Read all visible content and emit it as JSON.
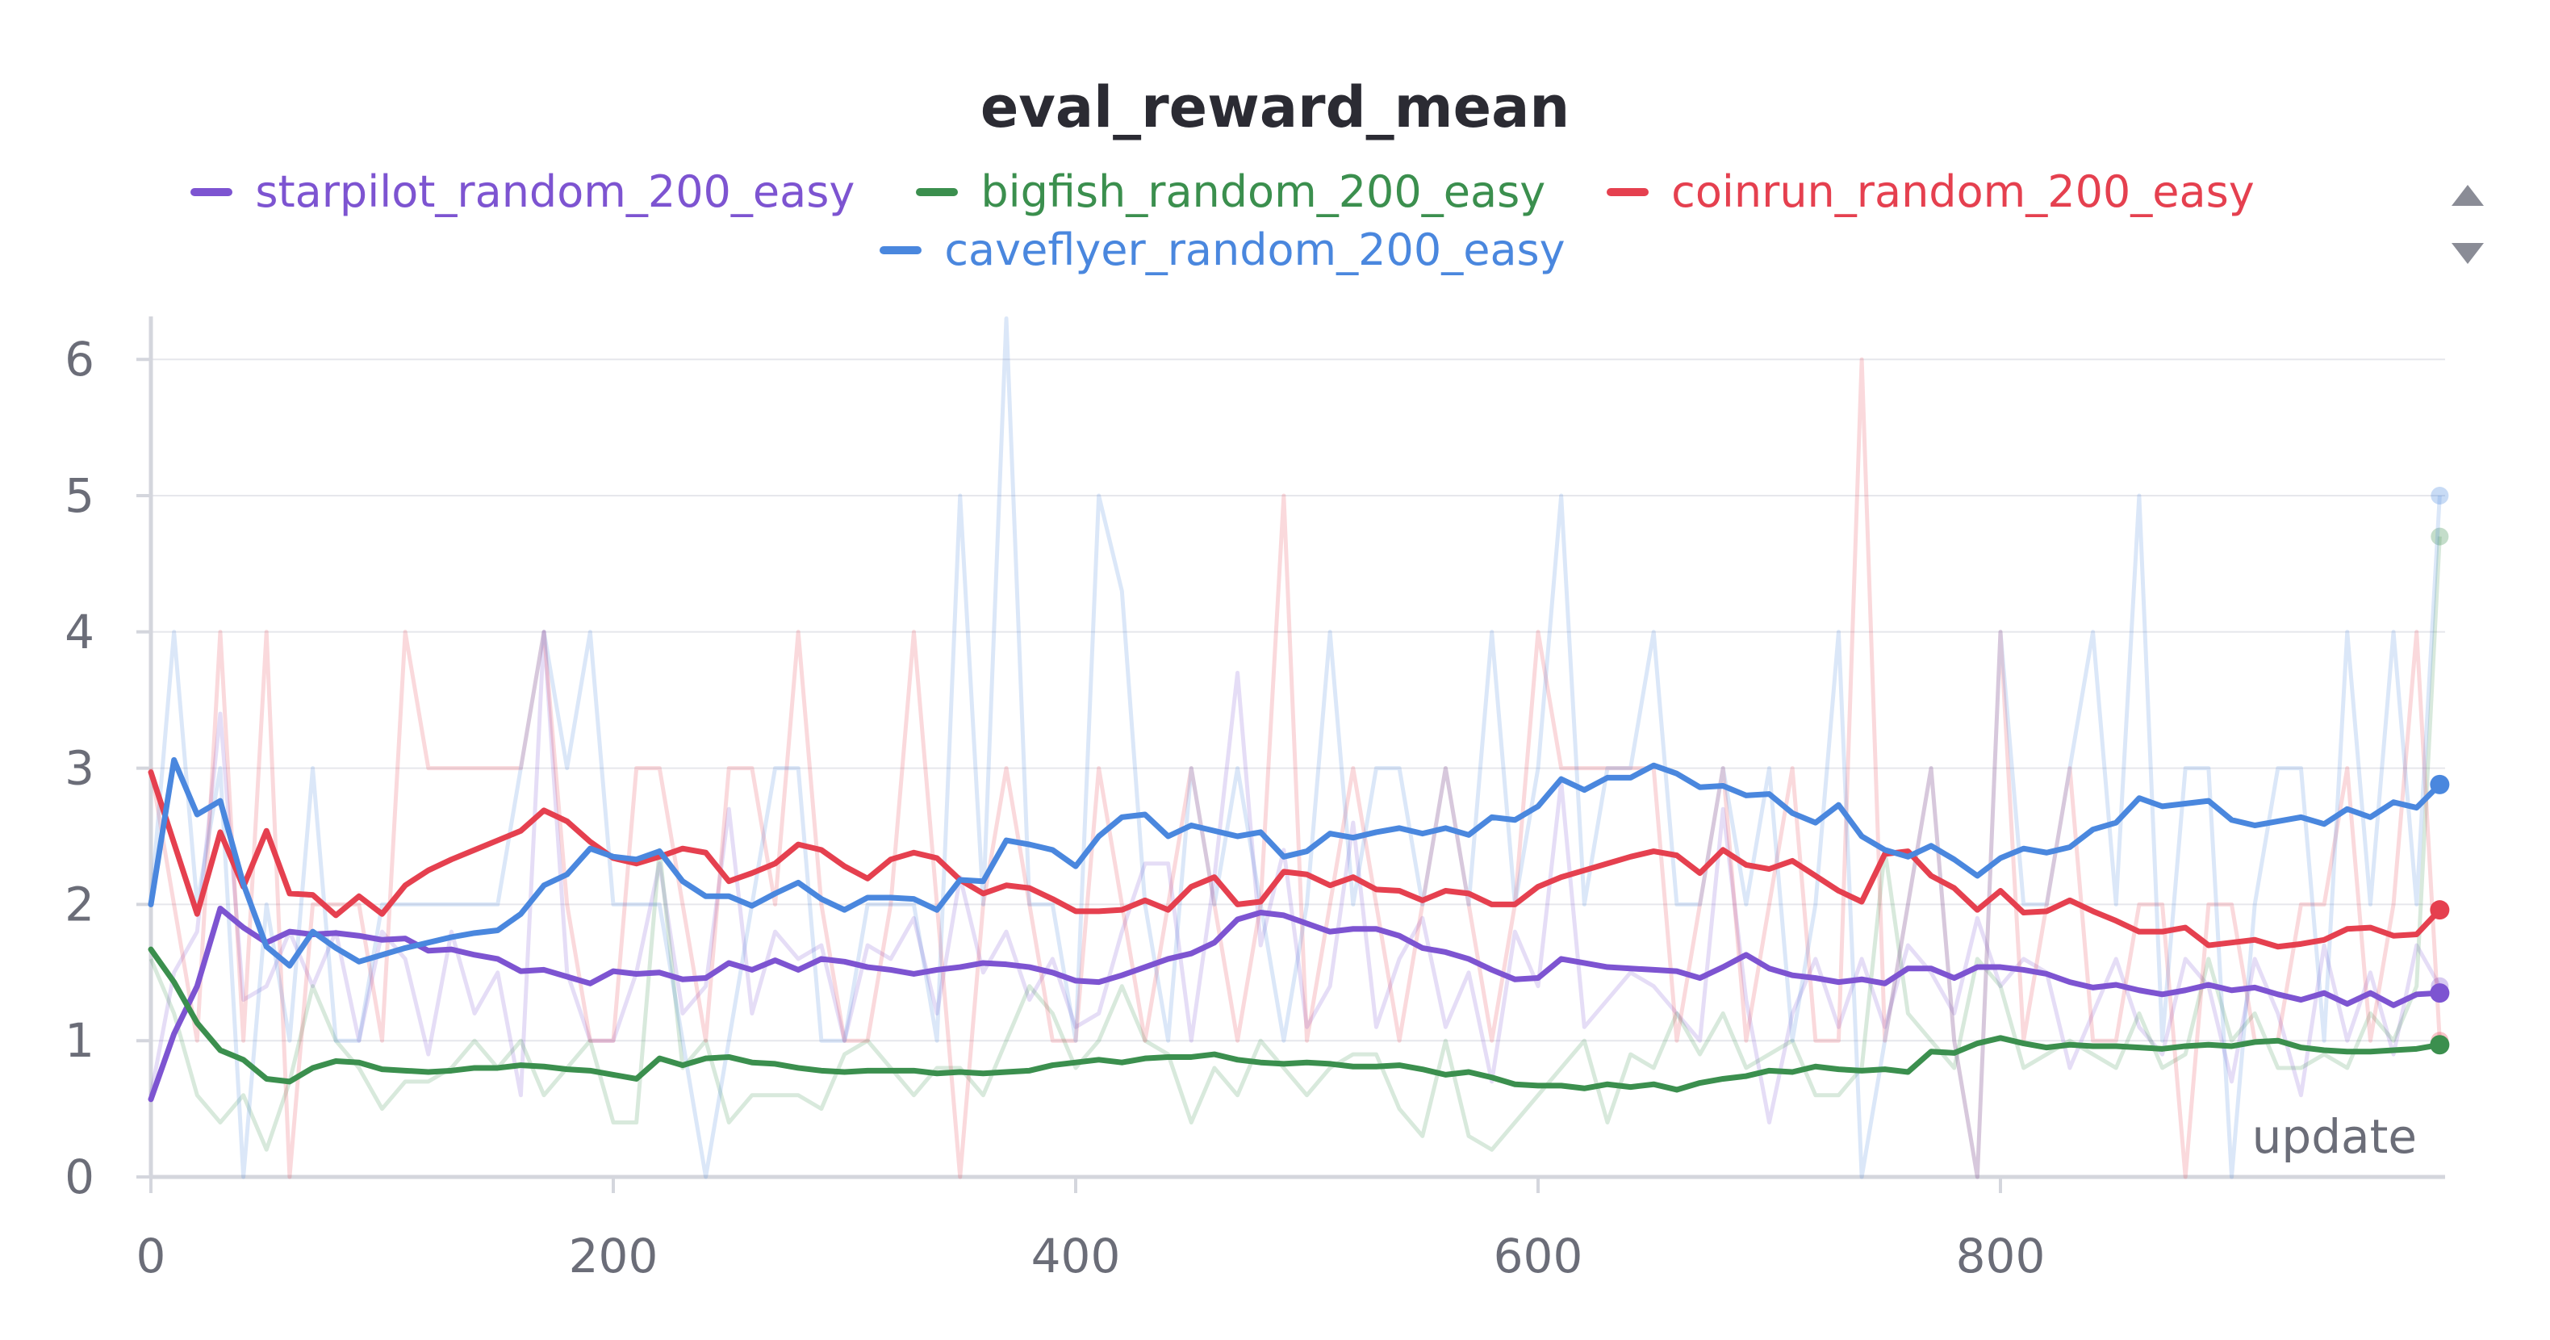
{
  "chart_data": {
    "type": "line",
    "title": "eval_reward_mean",
    "xlabel": "update",
    "ylabel": "",
    "xlim": [
      0,
      1000
    ],
    "ylim": [
      0,
      6.2
    ],
    "xticks": [
      "0",
      "200",
      "400",
      "600",
      "800"
    ],
    "yticks": [
      "0",
      "1",
      "2",
      "3",
      "4",
      "5",
      "6"
    ],
    "grid": true,
    "legend_position": "top",
    "x": [
      0,
      10,
      20,
      30,
      40,
      50,
      60,
      70,
      80,
      90,
      100,
      110,
      120,
      130,
      140,
      150,
      160,
      170,
      180,
      190,
      200,
      210,
      220,
      230,
      240,
      250,
      260,
      270,
      280,
      290,
      300,
      310,
      320,
      330,
      340,
      350,
      360,
      370,
      380,
      390,
      400,
      410,
      420,
      430,
      440,
      450,
      460,
      470,
      480,
      490,
      500,
      510,
      520,
      530,
      540,
      550,
      560,
      570,
      580,
      590,
      600,
      610,
      620,
      630,
      640,
      650,
      660,
      670,
      680,
      690,
      700,
      710,
      720,
      730,
      740,
      750,
      760,
      770,
      780,
      790,
      800,
      810,
      820,
      830,
      840,
      850,
      860,
      870,
      880,
      890,
      900,
      910,
      920,
      930,
      940,
      950,
      960,
      970,
      980,
      990
    ],
    "series": [
      {
        "name": "starpilot_random_200_easy",
        "color": "#7d54d1",
        "values": [
          0.57,
          1.05,
          1.4,
          1.97,
          1.83,
          1.72,
          1.8,
          1.78,
          1.79,
          1.77,
          1.74,
          1.75,
          1.66,
          1.67,
          1.63,
          1.6,
          1.51,
          1.52,
          1.47,
          1.42,
          1.51,
          1.49,
          1.5,
          1.45,
          1.46,
          1.57,
          1.52,
          1.59,
          1.52,
          1.6,
          1.58,
          1.54,
          1.52,
          1.49,
          1.52,
          1.54,
          1.57,
          1.56,
          1.54,
          1.5,
          1.44,
          1.43,
          1.48,
          1.54,
          1.6,
          1.64,
          1.72,
          1.89,
          1.94,
          1.92,
          1.86,
          1.8,
          1.82,
          1.82,
          1.77,
          1.68,
          1.65,
          1.6,
          1.52,
          1.45,
          1.46,
          1.6,
          1.57,
          1.54,
          1.53,
          1.52,
          1.51,
          1.46,
          1.54,
          1.63,
          1.53,
          1.48,
          1.46,
          1.43,
          1.45,
          1.42,
          1.53,
          1.53,
          1.46,
          1.54,
          1.54,
          1.52,
          1.49,
          1.43,
          1.39,
          1.41,
          1.37,
          1.34,
          1.37,
          1.41,
          1.37,
          1.39,
          1.34,
          1.3,
          1.35,
          1.27,
          1.35,
          1.26,
          1.34,
          1.35
        ],
        "raw": [
          0.6,
          1.5,
          1.8,
          3.4,
          1.3,
          1.4,
          1.8,
          1.4,
          1.8,
          1.0,
          1.8,
          1.6,
          0.9,
          1.8,
          1.2,
          1.5,
          0.6,
          4.0,
          1.5,
          1.0,
          1.0,
          1.5,
          2.3,
          1.2,
          1.4,
          2.7,
          1.2,
          1.8,
          1.6,
          1.7,
          1.0,
          1.7,
          1.6,
          1.9,
          1.2,
          2.2,
          1.5,
          1.8,
          1.3,
          1.6,
          1.1,
          1.2,
          1.8,
          2.3,
          2.3,
          1.0,
          2.2,
          3.7,
          1.7,
          2.4,
          1.1,
          1.4,
          2.6,
          1.1,
          1.6,
          1.9,
          1.1,
          1.5,
          0.7,
          1.8,
          1.4,
          2.9,
          1.1,
          1.3,
          1.5,
          1.4,
          1.2,
          1.0,
          2.7,
          1.3,
          0.4,
          1.2,
          1.6,
          1.1,
          1.6,
          1.1,
          1.7,
          1.5,
          1.2,
          1.9,
          1.4,
          1.6,
          1.5,
          0.8,
          1.2,
          1.6,
          1.1,
          0.9,
          1.6,
          1.4,
          0.7,
          1.6,
          1.2,
          0.6,
          1.7,
          1.0,
          1.5,
          0.9,
          1.7,
          1.4
        ]
      },
      {
        "name": "bigfish_random_200_easy",
        "color": "#3b8f4e",
        "values": [
          1.67,
          1.43,
          1.13,
          0.93,
          0.86,
          0.72,
          0.7,
          0.8,
          0.85,
          0.84,
          0.79,
          0.78,
          0.77,
          0.78,
          0.8,
          0.8,
          0.82,
          0.81,
          0.79,
          0.78,
          0.75,
          0.72,
          0.87,
          0.82,
          0.87,
          0.88,
          0.84,
          0.83,
          0.8,
          0.78,
          0.77,
          0.78,
          0.78,
          0.78,
          0.76,
          0.77,
          0.76,
          0.77,
          0.78,
          0.82,
          0.84,
          0.86,
          0.84,
          0.87,
          0.88,
          0.88,
          0.9,
          0.86,
          0.84,
          0.83,
          0.84,
          0.83,
          0.81,
          0.81,
          0.82,
          0.79,
          0.75,
          0.77,
          0.73,
          0.68,
          0.67,
          0.67,
          0.65,
          0.68,
          0.66,
          0.68,
          0.64,
          0.69,
          0.72,
          0.74,
          0.78,
          0.77,
          0.81,
          0.79,
          0.78,
          0.79,
          0.77,
          0.92,
          0.91,
          0.98,
          1.02,
          0.98,
          0.95,
          0.97,
          0.96,
          0.96,
          0.95,
          0.94,
          0.96,
          0.97,
          0.96,
          0.99,
          1.0,
          0.95,
          0.93,
          0.92,
          0.92,
          0.93,
          0.94,
          0.97
        ],
        "raw": [
          1.6,
          1.2,
          0.6,
          0.4,
          0.6,
          0.2,
          0.7,
          1.4,
          1.0,
          0.8,
          0.5,
          0.7,
          0.7,
          0.8,
          1.0,
          0.8,
          1.0,
          0.6,
          0.8,
          1.0,
          0.4,
          0.4,
          2.4,
          0.8,
          1.0,
          0.4,
          0.6,
          0.6,
          0.6,
          0.5,
          0.9,
          1.0,
          0.8,
          0.6,
          0.8,
          0.8,
          0.6,
          1.0,
          1.4,
          1.2,
          0.8,
          1.0,
          1.4,
          1.0,
          0.9,
          0.4,
          0.8,
          0.6,
          1.0,
          0.8,
          0.6,
          0.8,
          0.9,
          0.9,
          0.5,
          0.3,
          1.0,
          0.3,
          0.2,
          0.4,
          0.6,
          0.8,
          1.0,
          0.4,
          0.9,
          0.8,
          1.2,
          0.9,
          1.2,
          0.8,
          0.9,
          1.0,
          0.6,
          0.6,
          0.8,
          2.4,
          1.2,
          1.0,
          0.8,
          1.6,
          1.4,
          0.8,
          0.9,
          1.0,
          0.9,
          0.8,
          1.2,
          0.8,
          0.9,
          1.6,
          1.0,
          1.2,
          0.8,
          0.8,
          0.9,
          0.8,
          1.2,
          1.0,
          1.4,
          4.7
        ]
      },
      {
        "name": "coinrun_random_200_easy",
        "color": "#e5404f",
        "values": [
          2.97,
          2.45,
          1.93,
          2.53,
          2.13,
          2.54,
          2.08,
          2.07,
          1.92,
          2.06,
          1.93,
          2.14,
          2.25,
          2.33,
          2.4,
          2.47,
          2.54,
          2.69,
          2.61,
          2.46,
          2.34,
          2.3,
          2.35,
          2.41,
          2.38,
          2.17,
          2.23,
          2.3,
          2.44,
          2.4,
          2.28,
          2.19,
          2.33,
          2.38,
          2.34,
          2.18,
          2.08,
          2.14,
          2.12,
          2.04,
          1.95,
          1.95,
          1.96,
          2.03,
          1.96,
          2.13,
          2.2,
          2.0,
          2.02,
          2.24,
          2.22,
          2.14,
          2.2,
          2.11,
          2.1,
          2.03,
          2.1,
          2.08,
          2.0,
          2.0,
          2.13,
          2.2,
          2.25,
          2.3,
          2.35,
          2.39,
          2.36,
          2.23,
          2.4,
          2.29,
          2.26,
          2.32,
          2.21,
          2.1,
          2.02,
          2.37,
          2.39,
          2.21,
          2.12,
          1.96,
          2.1,
          1.94,
          1.95,
          2.03,
          1.95,
          1.88,
          1.8,
          1.8,
          1.83,
          1.7,
          1.72,
          1.74,
          1.69,
          1.71,
          1.74,
          1.82,
          1.83,
          1.77,
          1.78,
          1.96
        ],
        "raw": [
          3.0,
          2.0,
          1.0,
          4.0,
          1.0,
          4.0,
          0.0,
          2.0,
          2.0,
          2.0,
          1.0,
          4.0,
          3.0,
          3.0,
          3.0,
          3.0,
          3.0,
          4.0,
          2.0,
          1.0,
          1.0,
          3.0,
          3.0,
          2.0,
          1.0,
          3.0,
          3.0,
          2.0,
          4.0,
          2.0,
          1.0,
          1.0,
          2.0,
          4.0,
          2.0,
          0.0,
          2.0,
          3.0,
          2.0,
          1.0,
          1.0,
          3.0,
          2.0,
          1.0,
          2.0,
          3.0,
          2.0,
          1.0,
          2.0,
          5.0,
          1.0,
          2.0,
          3.0,
          2.0,
          1.0,
          2.0,
          3.0,
          2.0,
          1.0,
          2.0,
          4.0,
          3.0,
          3.0,
          3.0,
          3.0,
          3.0,
          1.0,
          2.0,
          3.0,
          1.0,
          2.0,
          3.0,
          1.0,
          1.0,
          6.0,
          1.0,
          2.0,
          3.0,
          1.0,
          0.0,
          4.0,
          1.0,
          2.0,
          3.0,
          1.0,
          1.0,
          2.0,
          2.0,
          0.0,
          2.0,
          2.0,
          1.0,
          1.0,
          2.0,
          2.0,
          3.0,
          1.0,
          2.0,
          4.0,
          1.0
        ]
      },
      {
        "name": "caveflyer_random_200_easy",
        "color": "#4a87de",
        "values": [
          2.0,
          3.06,
          2.66,
          2.76,
          2.15,
          1.69,
          1.55,
          1.8,
          1.68,
          1.58,
          1.63,
          1.68,
          1.72,
          1.76,
          1.79,
          1.81,
          1.93,
          2.14,
          2.22,
          2.41,
          2.35,
          2.33,
          2.39,
          2.17,
          2.06,
          2.06,
          1.99,
          2.08,
          2.16,
          2.04,
          1.96,
          2.05,
          2.05,
          2.04,
          1.96,
          2.18,
          2.17,
          2.47,
          2.44,
          2.4,
          2.28,
          2.5,
          2.64,
          2.66,
          2.5,
          2.58,
          2.54,
          2.5,
          2.53,
          2.35,
          2.39,
          2.52,
          2.49,
          2.53,
          2.56,
          2.52,
          2.56,
          2.51,
          2.64,
          2.62,
          2.72,
          2.92,
          2.84,
          2.93,
          2.93,
          3.02,
          2.96,
          2.86,
          2.87,
          2.8,
          2.81,
          2.67,
          2.6,
          2.73,
          2.5,
          2.4,
          2.35,
          2.43,
          2.33,
          2.21,
          2.34,
          2.41,
          2.38,
          2.42,
          2.55,
          2.6,
          2.78,
          2.72,
          2.74,
          2.76,
          2.62,
          2.58,
          2.61,
          2.64,
          2.59,
          2.7,
          2.64,
          2.75,
          2.71,
          2.88
        ],
        "raw": [
          2.0,
          4.0,
          2.0,
          3.0,
          0.0,
          2.0,
          1.0,
          3.0,
          1.0,
          1.0,
          2.0,
          2.0,
          2.0,
          2.0,
          2.0,
          2.0,
          3.0,
          4.0,
          3.0,
          4.0,
          2.0,
          2.0,
          2.0,
          1.0,
          0.0,
          1.0,
          2.0,
          3.0,
          3.0,
          1.0,
          1.0,
          2.0,
          2.0,
          2.0,
          1.0,
          5.0,
          2.0,
          6.3,
          2.0,
          2.0,
          1.0,
          5.0,
          4.3,
          2.0,
          1.0,
          3.0,
          2.0,
          3.0,
          2.0,
          1.0,
          2.0,
          4.0,
          2.0,
          3.0,
          3.0,
          2.0,
          3.0,
          2.0,
          4.0,
          2.0,
          3.0,
          5.0,
          2.0,
          3.0,
          3.0,
          4.0,
          2.0,
          2.0,
          3.0,
          2.0,
          3.0,
          1.0,
          2.0,
          4.0,
          0.0,
          1.0,
          2.0,
          3.0,
          1.0,
          0.0,
          4.0,
          2.0,
          2.0,
          3.0,
          4.0,
          2.0,
          5.0,
          1.0,
          3.0,
          3.0,
          0.0,
          2.0,
          3.0,
          3.0,
          1.0,
          4.0,
          2.0,
          4.0,
          2.0,
          5.0
        ]
      }
    ]
  },
  "scroll": {
    "up_icon": "triangle-up-icon",
    "down_icon": "triangle-down-icon"
  }
}
